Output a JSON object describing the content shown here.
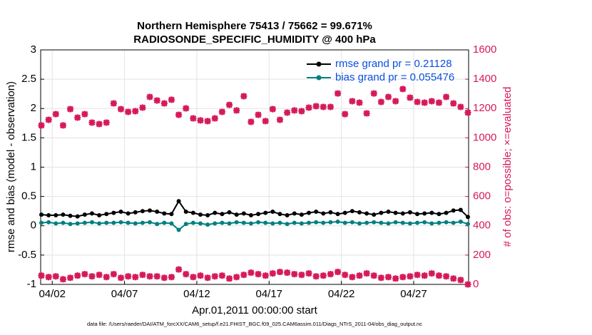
{
  "chart_data": {
    "type": "line",
    "title": "Northern Hemisphere 75413 / 75662 = 99.671%",
    "subtitle": "RADIOSONDE_SPECIFIC_HUMIDITY @ 400 hPa",
    "xlabel": "Apr.01,2011 00:00:00 start",
    "ylabel": "rmse and bias (model - observation)",
    "y2label": "# of obs: o=possible; ×=evaluated",
    "footnote": "data file: /Users/raeder/DAI/ATM_forcXX/CAM6_setup/f.e21.FHIST_BGC.f09_025.CAM6assim.011/Diags_NTrS_2011-04/obs_diag_output.nc",
    "grid": true,
    "legend": "upper right",
    "xlim": [
      1.2,
      30.8
    ],
    "xticks": [
      {
        "value": 2,
        "label": "04/02"
      },
      {
        "value": 7,
        "label": "04/07"
      },
      {
        "value": 12,
        "label": "04/12"
      },
      {
        "value": 17,
        "label": "04/17"
      },
      {
        "value": 22,
        "label": "04/22"
      },
      {
        "value": 27,
        "label": "04/27"
      }
    ],
    "ylim": [
      -1,
      3
    ],
    "yticks": [
      -1,
      -0.5,
      0,
      0.5,
      1,
      1.5,
      2,
      2.5,
      3
    ],
    "y2lim": [
      0,
      1600
    ],
    "y2ticks": [
      0,
      200,
      400,
      600,
      800,
      1000,
      1200,
      1400,
      1600
    ],
    "x": [
      1.25,
      1.75,
      2.25,
      2.75,
      3.25,
      3.75,
      4.25,
      4.75,
      5.25,
      5.75,
      6.25,
      6.75,
      7.25,
      7.75,
      8.25,
      8.75,
      9.25,
      9.75,
      10.25,
      10.75,
      11.25,
      11.75,
      12.25,
      12.75,
      13.25,
      13.75,
      14.25,
      14.75,
      15.25,
      15.75,
      16.25,
      16.75,
      17.25,
      17.75,
      18.25,
      18.75,
      19.25,
      19.75,
      20.25,
      20.75,
      21.25,
      21.75,
      22.25,
      22.75,
      23.25,
      23.75,
      24.25,
      24.75,
      25.25,
      25.75,
      26.25,
      26.75,
      27.25,
      27.75,
      28.25,
      28.75,
      29.25,
      29.75,
      30.25,
      30.75
    ],
    "series": [
      {
        "name": "rmse grand pr = 0.21128",
        "color": "#000000",
        "marker": "o",
        "linestyle": "-",
        "values": [
          0.19,
          0.18,
          0.18,
          0.19,
          0.17,
          0.16,
          0.19,
          0.21,
          0.18,
          0.2,
          0.22,
          0.24,
          0.21,
          0.23,
          0.25,
          0.26,
          0.24,
          0.21,
          0.2,
          0.42,
          0.24,
          0.22,
          0.19,
          0.18,
          0.22,
          0.2,
          0.23,
          0.19,
          0.21,
          0.18,
          0.2,
          0.22,
          0.24,
          0.2,
          0.18,
          0.21,
          0.19,
          0.22,
          0.24,
          0.21,
          0.23,
          0.2,
          0.22,
          0.25,
          0.23,
          0.21,
          0.19,
          0.22,
          0.24,
          0.22,
          0.21,
          0.23,
          0.2,
          0.21,
          0.22,
          0.2,
          0.22,
          0.26,
          0.27,
          0.15
        ]
      },
      {
        "name": "bias grand pr = 0.055476",
        "color": "#008080",
        "marker": "o",
        "linestyle": "-",
        "values": [
          0.05,
          0.06,
          0.04,
          0.05,
          0.03,
          0.04,
          0.05,
          0.06,
          0.04,
          0.05,
          0.05,
          0.06,
          0.05,
          0.04,
          0.05,
          0.06,
          0.03,
          0.05,
          0.04,
          -0.07,
          0.03,
          0.05,
          0.04,
          0.02,
          0.04,
          0.05,
          0.04,
          0.06,
          0.05,
          0.04,
          0.06,
          0.05,
          0.04,
          0.05,
          0.03,
          0.05,
          0.04,
          0.05,
          0.06,
          0.05,
          0.06,
          0.07,
          0.05,
          0.06,
          0.04,
          0.05,
          0.06,
          0.05,
          0.04,
          0.06,
          0.05,
          0.04,
          0.05,
          0.06,
          0.04,
          0.05,
          0.06,
          0.05,
          0.07,
          0.03
        ]
      },
      {
        "color": "#d6195a",
        "marker": "x",
        "linestyle": "none",
        "axis": "y2",
        "values": [
          1085,
          1123,
          1162,
          1085,
          1196,
          1138,
          1162,
          1104,
          1094,
          1104,
          1235,
          1196,
          1177,
          1182,
          1206,
          1279,
          1255,
          1235,
          1260,
          1157,
          1201,
          1133,
          1119,
          1114,
          1133,
          1177,
          1225,
          1187,
          1284,
          1109,
          1157,
          1114,
          1196,
          1123,
          1172,
          1187,
          1182,
          1206,
          1216,
          1211,
          1211,
          1303,
          1162,
          1250,
          1240,
          1167,
          1303,
          1245,
          1279,
          1250,
          1333,
          1274,
          1245,
          1240,
          1250,
          1240,
          1279,
          1235,
          1211,
          1172
        ]
      },
      {
        "color": "#d6195a",
        "marker": "x",
        "linestyle": "none",
        "axis": "y2",
        "values": [
          60,
          50,
          55,
          35,
          45,
          60,
          70,
          55,
          65,
          50,
          70,
          45,
          55,
          50,
          65,
          55,
          55,
          45,
          50,
          102,
          70,
          50,
          60,
          45,
          55,
          60,
          40,
          50,
          65,
          80,
          70,
          60,
          75,
          85,
          80,
          70,
          65,
          75,
          55,
          60,
          70,
          85,
          65,
          50,
          60,
          75,
          60,
          45,
          50,
          40,
          50,
          55,
          65,
          60,
          75,
          60,
          55,
          40,
          30,
          0
        ]
      }
    ]
  }
}
